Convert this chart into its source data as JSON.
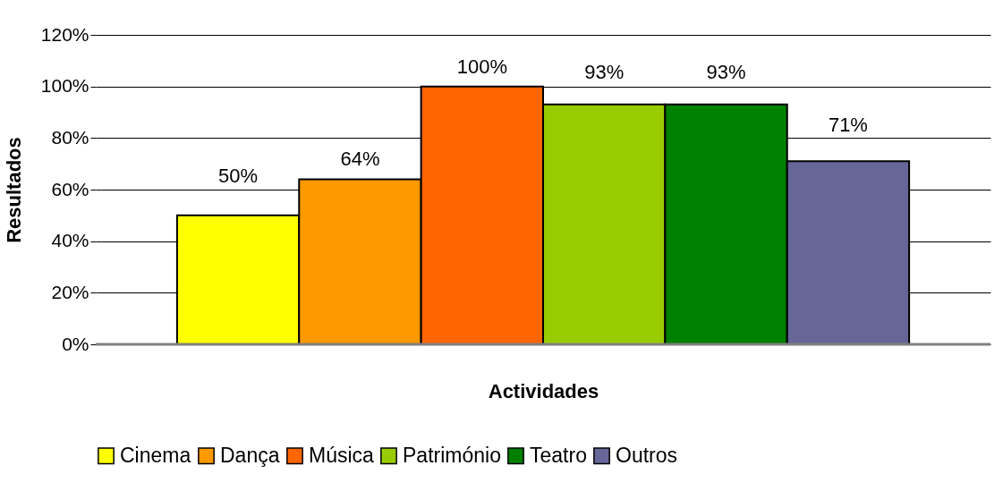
{
  "chart_data": {
    "type": "bar",
    "xlabel": "Actividades",
    "ylabel": "Resultados",
    "categories": [
      null
    ],
    "series": [
      {
        "name": "Cinema",
        "color": "#ffff00",
        "values": [
          50
        ],
        "value_labels": [
          "50%"
        ]
      },
      {
        "name": "Dança",
        "color": "#ff9900",
        "values": [
          64
        ],
        "value_labels": [
          "64%"
        ]
      },
      {
        "name": "Música",
        "color": "#ff6600",
        "values": [
          100
        ],
        "value_labels": [
          "100%"
        ]
      },
      {
        "name": "Património",
        "color": "#99cc00",
        "values": [
          93
        ],
        "value_labels": [
          "93%"
        ]
      },
      {
        "name": "Teatro",
        "color": "#008000",
        "values": [
          93
        ],
        "value_labels": [
          "93%"
        ]
      },
      {
        "name": "Outros",
        "color": "#666699",
        "values": [
          71
        ],
        "value_labels": [
          "71%"
        ]
      }
    ],
    "ylim": [
      0,
      120
    ],
    "yticks": [
      {
        "value": 0,
        "label": "0%"
      },
      {
        "value": 20,
        "label": "20%"
      },
      {
        "value": 40,
        "label": "40%"
      },
      {
        "value": 60,
        "label": "60%"
      },
      {
        "value": 80,
        "label": "80%"
      },
      {
        "value": 100,
        "label": "100%"
      },
      {
        "value": 120,
        "label": "120%"
      }
    ],
    "grid": "y",
    "legend": "bottom"
  }
}
